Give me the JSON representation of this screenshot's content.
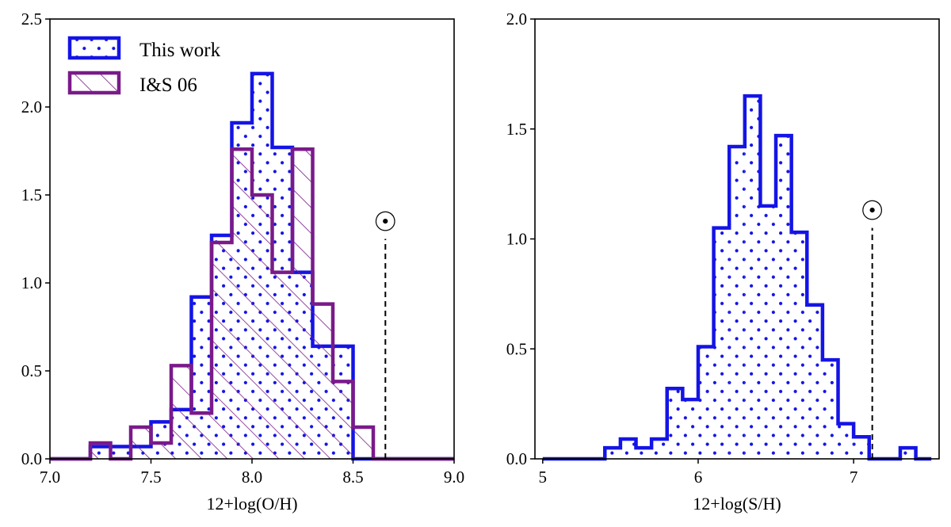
{
  "colors": {
    "this_work": "#1414e6",
    "is06": "#7a1a8a",
    "axis": "#000000"
  },
  "chart_data": [
    {
      "type": "histogram",
      "name": "oxygen",
      "xlabel": "12+log(O/H)",
      "xlim": [
        7.0,
        9.0
      ],
      "ylim": [
        0,
        2.5
      ],
      "xticks": [
        7.0,
        7.5,
        8.0,
        8.5,
        9.0
      ],
      "xtick_labels": [
        "7.0",
        "7.5",
        "8.0",
        "8.5",
        "9.0"
      ],
      "yticks": [
        0,
        0.5,
        1.0,
        1.5,
        2.0,
        2.5
      ],
      "ytick_labels": [
        "0.0",
        "0.5",
        "1.0",
        "1.5",
        "2.0",
        "2.5"
      ],
      "legend": {
        "position": "top-left",
        "entries": [
          {
            "label": "This work",
            "series": "this_work"
          },
          {
            "label": "I&S 06",
            "series": "is06"
          }
        ]
      },
      "solar": {
        "symbol": "☉",
        "value": 8.66,
        "top": 1.25
      },
      "series": [
        {
          "name": "this_work",
          "hatch": "dots",
          "edges": [
            7.0,
            7.1,
            7.2,
            7.3,
            7.4,
            7.5,
            7.6,
            7.7,
            7.8,
            7.9,
            8.0,
            8.1,
            8.2,
            8.3,
            8.4,
            8.5,
            8.6,
            8.7,
            8.8,
            8.9,
            9.0
          ],
          "values": [
            0,
            0,
            0.07,
            0.07,
            0.07,
            0.21,
            0.28,
            0.92,
            1.27,
            1.91,
            2.19,
            1.77,
            1.06,
            0.64,
            0.64,
            0,
            0,
            0,
            0,
            0
          ]
        },
        {
          "name": "is06",
          "hatch": "diagonal",
          "edges": [
            7.0,
            7.1,
            7.2,
            7.3,
            7.4,
            7.5,
            7.6,
            7.7,
            7.8,
            7.9,
            8.0,
            8.1,
            8.2,
            8.3,
            8.4,
            8.5,
            8.6,
            8.7,
            8.8,
            8.9,
            9.0
          ],
          "values": [
            0,
            0,
            0.09,
            0,
            0.18,
            0.09,
            0.53,
            0.26,
            1.23,
            1.76,
            1.5,
            1.06,
            1.76,
            0.88,
            0.44,
            0.18,
            0,
            0,
            0,
            0
          ]
        }
      ]
    },
    {
      "type": "histogram",
      "name": "sulfur",
      "xlabel": "12+log(S/H)",
      "xlim": [
        4.95,
        7.55
      ],
      "ylim": [
        0,
        2.0
      ],
      "xticks": [
        5,
        6,
        7
      ],
      "xtick_labels": [
        "5",
        "6",
        "7"
      ],
      "yticks": [
        0,
        0.5,
        1.0,
        1.5,
        2.0
      ],
      "ytick_labels": [
        "0.0",
        "0.5",
        "1.0",
        "1.5",
        "2.0"
      ],
      "solar": {
        "symbol": "☉",
        "value": 7.12,
        "top": 1.05
      },
      "series": [
        {
          "name": "this_work",
          "hatch": "dots",
          "edges": [
            5.0,
            5.1,
            5.2,
            5.3,
            5.4,
            5.5,
            5.6,
            5.7,
            5.8,
            5.9,
            6.0,
            6.1,
            6.2,
            6.3,
            6.4,
            6.5,
            6.6,
            6.7,
            6.8,
            6.9,
            7.0,
            7.1,
            7.2,
            7.3,
            7.4,
            7.5
          ],
          "values": [
            0,
            0,
            0,
            0,
            0.05,
            0.09,
            0.05,
            0.09,
            0.32,
            0.27,
            0.51,
            1.05,
            1.42,
            1.65,
            1.15,
            1.47,
            1.03,
            0.7,
            0.45,
            0.16,
            0.1,
            0,
            0,
            0.05,
            0
          ]
        }
      ]
    }
  ]
}
